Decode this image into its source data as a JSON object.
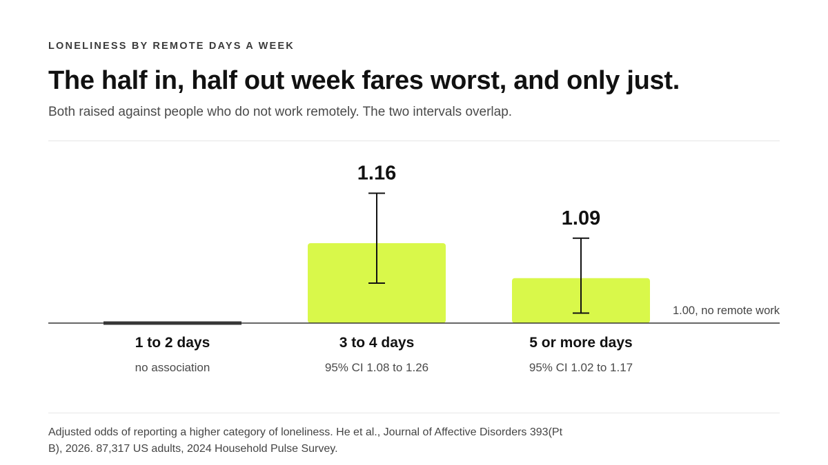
{
  "header": {
    "eyebrow": "LONELINESS BY REMOTE DAYS A WEEK",
    "title": "The half in, half out week fares worst, and only just.",
    "subtitle": "Both raised against people who do not work remotely. The two intervals overlap."
  },
  "chart_data": {
    "type": "bar",
    "baseline": 1.0,
    "baseline_label": "1.00, no remote work",
    "ylim": [
      1.0,
      1.33
    ],
    "grid": false,
    "legend": "none",
    "categories": [
      "1 to 2 days",
      "3 to 4 days",
      "5 or more days"
    ],
    "values": [
      1.0,
      1.16,
      1.09
    ],
    "value_labels": [
      "",
      "1.16",
      "1.09"
    ],
    "ci": [
      null,
      [
        1.08,
        1.26
      ],
      [
        1.02,
        1.17
      ]
    ],
    "notes": [
      "no association",
      "95% CI 1.08 to 1.26",
      "95% CI 1.02 to 1.17"
    ]
  },
  "colors": {
    "bar": "#d9f84a",
    "baseline": "#333333",
    "null_bar": "#3a3a3a",
    "error_bar": "#111111"
  },
  "footer": {
    "source": "Adjusted odds of reporting a higher category of loneliness. He et al., Journal of Affective Disorders 393(Pt B), 2026. 87,317 US adults, 2024 Household Pulse Survey."
  }
}
